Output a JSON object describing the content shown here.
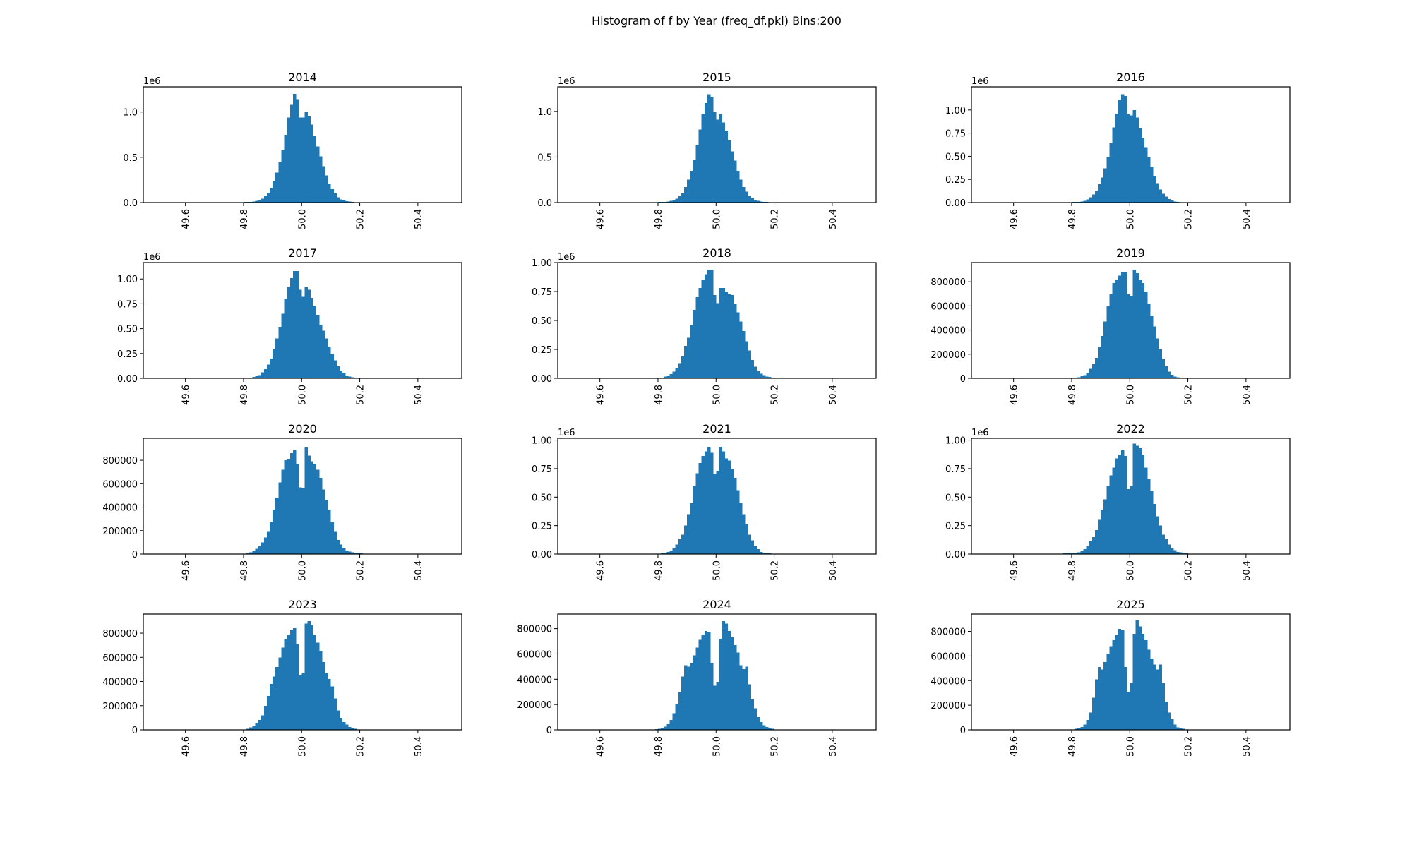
{
  "chart_data": {
    "type": "bar",
    "title": "Histogram of f by Year (freq_df.pkl) Bins:200",
    "bar_color": "#1f77b4",
    "xlim": [
      49.455,
      50.551
    ],
    "x_ticks": [
      49.6,
      49.8,
      50.0,
      50.2,
      50.4
    ],
    "x_tick_labels": [
      "49.6",
      "49.8",
      "50.0",
      "50.2",
      "50.4"
    ],
    "bin_start": 49.75,
    "bin_width": 0.01,
    "y_scale": 1000000,
    "values_unit": "counts in millions per bin",
    "subplots": [
      {
        "title": "2014",
        "offset_label": "1e6",
        "ylim": [
          0,
          1.278
        ],
        "y_ticks": [
          0,
          0.5,
          1.0
        ],
        "y_tick_labels": [
          "0.0",
          "0.5",
          "1.0"
        ],
        "values": [
          0,
          0,
          0,
          0,
          0,
          0.006,
          0.006,
          0.006,
          0.012,
          0.018,
          0.024,
          0.043,
          0.073,
          0.11,
          0.16,
          0.24,
          0.33,
          0.45,
          0.58,
          0.75,
          0.94,
          1.08,
          1.2,
          1.14,
          0.94,
          0.94,
          1.0,
          0.96,
          0.86,
          0.74,
          0.62,
          0.51,
          0.4,
          0.3,
          0.21,
          0.15,
          0.1,
          0.06,
          0.037,
          0.024,
          0.016,
          0.01,
          0.007,
          0.005,
          0.005,
          0.004,
          0,
          0,
          0,
          0
        ]
      },
      {
        "title": "2015",
        "offset_label": "1e6",
        "ylim": [
          0,
          1.27
        ],
        "y_ticks": [
          0,
          0.5,
          1.0
        ],
        "y_tick_labels": [
          "0.0",
          "0.5",
          "1.0"
        ],
        "values": [
          0,
          0,
          0,
          0,
          0,
          0.006,
          0.006,
          0.007,
          0.012,
          0.018,
          0.024,
          0.042,
          0.073,
          0.11,
          0.17,
          0.25,
          0.35,
          0.47,
          0.63,
          0.8,
          0.97,
          1.09,
          1.19,
          1.16,
          0.99,
          0.91,
          0.97,
          0.88,
          0.79,
          0.68,
          0.56,
          0.46,
          0.35,
          0.25,
          0.17,
          0.12,
          0.077,
          0.048,
          0.031,
          0.018,
          0.011,
          0.007,
          0.006,
          0.004,
          0.002,
          0.002,
          0,
          0,
          0,
          0
        ]
      },
      {
        "title": "2016",
        "offset_label": "1e6",
        "ylim": [
          0,
          1.25
        ],
        "y_ticks": [
          0,
          0.25,
          0.5,
          0.75,
          1.0
        ],
        "y_tick_labels": [
          "0.00",
          "0.25",
          "0.50",
          "0.75",
          "1.00"
        ],
        "values": [
          0,
          0,
          0,
          0,
          0,
          0.006,
          0.006,
          0.007,
          0.012,
          0.02,
          0.036,
          0.056,
          0.087,
          0.13,
          0.2,
          0.27,
          0.37,
          0.49,
          0.64,
          0.81,
          0.96,
          1.11,
          1.17,
          1.15,
          0.96,
          0.94,
          1.0,
          0.92,
          0.8,
          0.7,
          0.6,
          0.49,
          0.39,
          0.29,
          0.21,
          0.14,
          0.095,
          0.064,
          0.038,
          0.024,
          0.013,
          0.007,
          0.005,
          0.005,
          0.004,
          0.002,
          0,
          0,
          0,
          0
        ]
      },
      {
        "title": "2017",
        "offset_label": "1e6",
        "ylim": [
          0,
          1.165
        ],
        "y_ticks": [
          0,
          0.25,
          0.5,
          0.75,
          1.0
        ],
        "y_tick_labels": [
          "0.00",
          "0.25",
          "0.50",
          "0.75",
          "1.00"
        ],
        "values": [
          0,
          0,
          0,
          0,
          0,
          0.001,
          0.004,
          0.007,
          0.014,
          0.022,
          0.033,
          0.059,
          0.094,
          0.14,
          0.2,
          0.29,
          0.4,
          0.52,
          0.65,
          0.8,
          0.92,
          1.01,
          1.08,
          1.08,
          0.89,
          0.82,
          0.92,
          0.89,
          0.81,
          0.73,
          0.64,
          0.54,
          0.48,
          0.4,
          0.32,
          0.24,
          0.18,
          0.12,
          0.078,
          0.048,
          0.029,
          0.019,
          0.012,
          0.007,
          0.004,
          0.001,
          0,
          0,
          0,
          0
        ]
      },
      {
        "title": "2018",
        "offset_label": "1e6",
        "ylim": [
          0,
          1.0
        ],
        "y_ticks": [
          0,
          0.25,
          0.5,
          0.75,
          1.0
        ],
        "y_tick_labels": [
          "0.00",
          "0.25",
          "0.50",
          "0.75",
          "1.00"
        ],
        "values": [
          0,
          0,
          0,
          0.002,
          0.003,
          0.004,
          0.006,
          0.014,
          0.025,
          0.036,
          0.057,
          0.092,
          0.13,
          0.19,
          0.28,
          0.35,
          0.46,
          0.59,
          0.7,
          0.78,
          0.85,
          0.9,
          0.94,
          0.94,
          0.72,
          0.65,
          0.78,
          0.78,
          0.75,
          0.73,
          0.72,
          0.64,
          0.57,
          0.49,
          0.41,
          0.32,
          0.24,
          0.16,
          0.1,
          0.061,
          0.041,
          0.027,
          0.016,
          0.011,
          0.006,
          0.006,
          0.003,
          0.002,
          0,
          0
        ]
      },
      {
        "title": "2019",
        "offset_label": "",
        "ylim": [
          0,
          0.959
        ],
        "y_ticks": [
          0,
          0.2,
          0.4,
          0.6,
          0.8
        ],
        "y_tick_labels": [
          "0",
          "200000",
          "400000",
          "600000",
          "800000"
        ],
        "values": [
          0,
          0,
          0,
          0,
          0.002,
          0.004,
          0.004,
          0.009,
          0.018,
          0.027,
          0.048,
          0.078,
          0.12,
          0.17,
          0.26,
          0.35,
          0.47,
          0.6,
          0.7,
          0.79,
          0.82,
          0.85,
          0.88,
          0.88,
          0.7,
          0.68,
          0.9,
          0.87,
          0.82,
          0.79,
          0.72,
          0.62,
          0.52,
          0.43,
          0.33,
          0.24,
          0.16,
          0.1,
          0.055,
          0.029,
          0.016,
          0.01,
          0.005,
          0.004,
          0.004,
          0.001,
          0,
          0,
          0,
          0
        ]
      },
      {
        "title": "2020",
        "offset_label": "",
        "ylim": [
          0,
          0.987
        ],
        "y_ticks": [
          0,
          0.2,
          0.4,
          0.6,
          0.8
        ],
        "y_tick_labels": [
          "0",
          "200000",
          "400000",
          "600000",
          "800000"
        ],
        "values": [
          0.003,
          0.003,
          0.003,
          0.003,
          0.003,
          0.004,
          0.009,
          0.016,
          0.026,
          0.044,
          0.066,
          0.1,
          0.14,
          0.19,
          0.27,
          0.38,
          0.48,
          0.61,
          0.72,
          0.8,
          0.81,
          0.86,
          0.89,
          0.77,
          0.57,
          0.56,
          0.91,
          0.84,
          0.79,
          0.77,
          0.72,
          0.65,
          0.55,
          0.46,
          0.38,
          0.27,
          0.19,
          0.12,
          0.081,
          0.051,
          0.03,
          0.02,
          0.014,
          0.009,
          0.008,
          0.006,
          0.004,
          0.004,
          0.004,
          0.004
        ]
      },
      {
        "title": "2021",
        "offset_label": "1e6",
        "ylim": [
          0,
          1.016
        ],
        "y_ticks": [
          0,
          0.25,
          0.5,
          0.75,
          1.0
        ],
        "y_tick_labels": [
          "0.00",
          "0.25",
          "0.50",
          "0.75",
          "1.00"
        ],
        "values": [
          0.003,
          0.003,
          0.003,
          0.003,
          0.003,
          0.004,
          0.006,
          0.013,
          0.02,
          0.031,
          0.052,
          0.083,
          0.13,
          0.17,
          0.25,
          0.35,
          0.45,
          0.6,
          0.71,
          0.8,
          0.86,
          0.9,
          0.94,
          0.89,
          0.7,
          0.73,
          0.94,
          0.9,
          0.84,
          0.82,
          0.75,
          0.67,
          0.56,
          0.45,
          0.35,
          0.26,
          0.17,
          0.12,
          0.073,
          0.042,
          0.02,
          0.013,
          0.009,
          0.006,
          0.004,
          0.003,
          0.003,
          0.003,
          0.003,
          0.003
        ]
      },
      {
        "title": "2022",
        "offset_label": "1e6",
        "ylim": [
          0,
          1.016
        ],
        "y_ticks": [
          0,
          0.25,
          0.5,
          0.75,
          1.0
        ],
        "y_tick_labels": [
          "0.00",
          "0.25",
          "0.50",
          "0.75",
          "1.00"
        ],
        "values": [
          0.004,
          0.004,
          0.005,
          0.006,
          0.008,
          0.009,
          0.009,
          0.015,
          0.025,
          0.042,
          0.067,
          0.11,
          0.15,
          0.21,
          0.3,
          0.39,
          0.48,
          0.6,
          0.69,
          0.76,
          0.84,
          0.87,
          0.91,
          0.86,
          0.57,
          0.6,
          0.97,
          0.95,
          0.93,
          0.87,
          0.76,
          0.66,
          0.55,
          0.44,
          0.33,
          0.25,
          0.17,
          0.13,
          0.083,
          0.052,
          0.035,
          0.02,
          0.015,
          0.011,
          0.006,
          0.003,
          0.003,
          0.003,
          0.003,
          0.003
        ]
      },
      {
        "title": "2023",
        "offset_label": "",
        "ylim": [
          0,
          0.958
        ],
        "y_ticks": [
          0,
          0.2,
          0.4,
          0.6,
          0.8
        ],
        "y_tick_labels": [
          "0",
          "200000",
          "400000",
          "600000",
          "800000"
        ],
        "values": [
          0,
          0,
          0,
          0.002,
          0.002,
          0.004,
          0.01,
          0.02,
          0.034,
          0.053,
          0.082,
          0.12,
          0.2,
          0.28,
          0.38,
          0.44,
          0.52,
          0.6,
          0.68,
          0.75,
          0.79,
          0.83,
          0.84,
          0.71,
          0.45,
          0.47,
          0.88,
          0.9,
          0.87,
          0.79,
          0.72,
          0.65,
          0.56,
          0.47,
          0.42,
          0.36,
          0.26,
          0.16,
          0.1,
          0.064,
          0.044,
          0.024,
          0.014,
          0.008,
          0.004,
          0.002,
          0,
          0,
          0,
          0
        ]
      },
      {
        "title": "2024",
        "offset_label": "",
        "ylim": [
          0,
          0.915
        ],
        "y_ticks": [
          0,
          0.2,
          0.4,
          0.6,
          0.8
        ],
        "y_tick_labels": [
          "0",
          "200000",
          "400000",
          "600000",
          "800000"
        ],
        "values": [
          0,
          0,
          0,
          0.003,
          0.005,
          0.008,
          0.013,
          0.026,
          0.045,
          0.078,
          0.13,
          0.2,
          0.3,
          0.42,
          0.51,
          0.5,
          0.53,
          0.59,
          0.65,
          0.71,
          0.75,
          0.78,
          0.77,
          0.53,
          0.35,
          0.38,
          0.72,
          0.86,
          0.84,
          0.78,
          0.73,
          0.67,
          0.61,
          0.51,
          0.48,
          0.5,
          0.36,
          0.24,
          0.17,
          0.1,
          0.061,
          0.037,
          0.023,
          0.013,
          0.008,
          0.003,
          0,
          0,
          0,
          0
        ]
      },
      {
        "title": "2025",
        "offset_label": "",
        "ylim": [
          0,
          0.941
        ],
        "y_ticks": [
          0,
          0.2,
          0.4,
          0.6,
          0.8
        ],
        "y_tick_labels": [
          "0",
          "200000",
          "400000",
          "600000",
          "800000"
        ],
        "values": [
          0,
          0,
          0,
          0.002,
          0.003,
          0.004,
          0.008,
          0.012,
          0.023,
          0.043,
          0.081,
          0.14,
          0.26,
          0.41,
          0.51,
          0.49,
          0.55,
          0.62,
          0.68,
          0.73,
          0.77,
          0.82,
          0.81,
          0.51,
          0.31,
          0.38,
          0.78,
          0.89,
          0.84,
          0.78,
          0.73,
          0.65,
          0.58,
          0.53,
          0.49,
          0.53,
          0.38,
          0.23,
          0.14,
          0.09,
          0.043,
          0.02,
          0.012,
          0.008,
          0.004,
          0.002,
          0,
          0,
          0,
          0
        ]
      }
    ]
  }
}
